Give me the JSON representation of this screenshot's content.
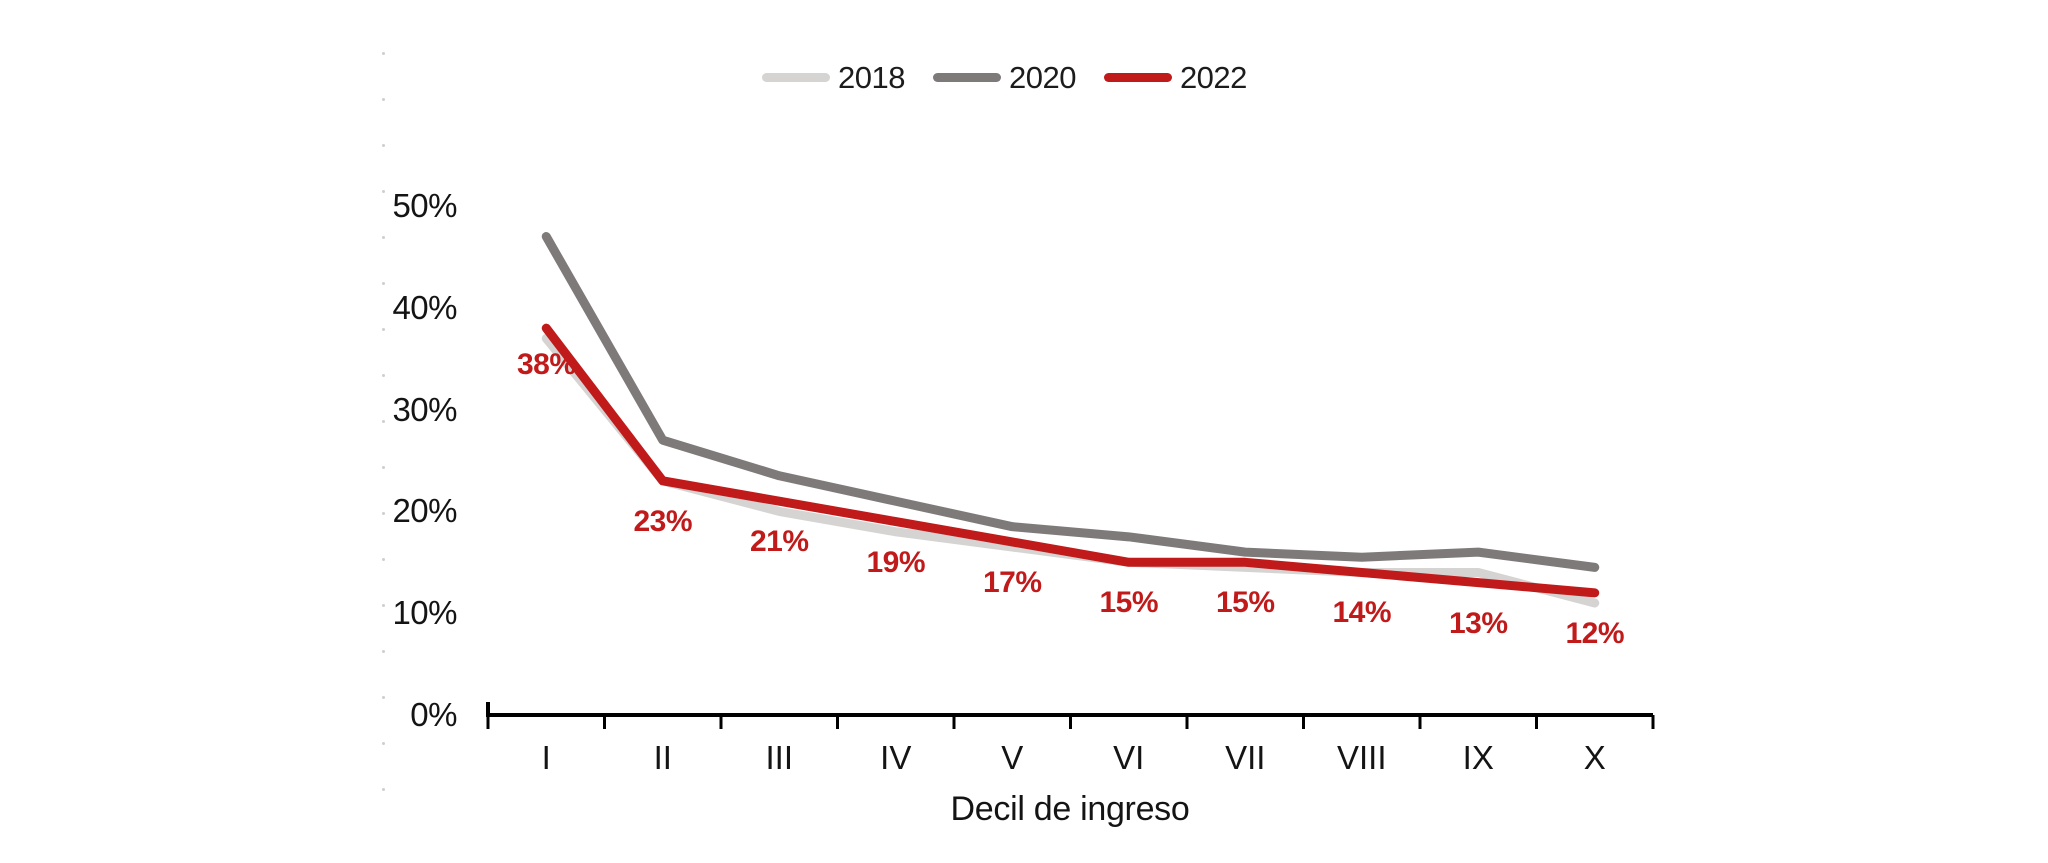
{
  "figure": {
    "background": "#ffffff",
    "text_color": "#141414",
    "axis_color": "#000000",
    "artifact_dot_color": "#cfcfcf"
  },
  "legend": {
    "items": [
      {
        "label": "2018",
        "color": "#d5d4d3"
      },
      {
        "label": "2020",
        "color": "#7e7a79"
      },
      {
        "label": "2022",
        "color": "#c01b1a"
      }
    ]
  },
  "chart_data": {
    "type": "line",
    "title": "",
    "xlabel": "Decil de ingreso",
    "ylabel": "",
    "categories": [
      "I",
      "II",
      "III",
      "IV",
      "V",
      "VI",
      "VII",
      "VIII",
      "IX",
      "X"
    ],
    "y_ticks": [
      "0%",
      "10%",
      "20%",
      "30%",
      "40%",
      "50%"
    ],
    "y_tick_values": [
      0,
      10,
      20,
      30,
      40,
      50
    ],
    "ylim": [
      0,
      50
    ],
    "grid": false,
    "legend_position": "top-center",
    "series": [
      {
        "name": "2018",
        "color": "#d5d4d3",
        "values": [
          37,
          23,
          20,
          18,
          16.5,
          15,
          14.5,
          14,
          14,
          11
        ]
      },
      {
        "name": "2020",
        "color": "#7e7a79",
        "values": [
          47,
          27,
          23.5,
          21,
          18.5,
          17.5,
          16,
          15.5,
          16,
          14.5
        ]
      },
      {
        "name": "2022",
        "color": "#c01b1a",
        "values": [
          38,
          23,
          21,
          19,
          17,
          15,
          15,
          14,
          13,
          12
        ],
        "data_labels": [
          "38%",
          "23%",
          "21%",
          "19%",
          "17%",
          "15%",
          "15%",
          "14%",
          "13%",
          "12%"
        ]
      }
    ]
  }
}
